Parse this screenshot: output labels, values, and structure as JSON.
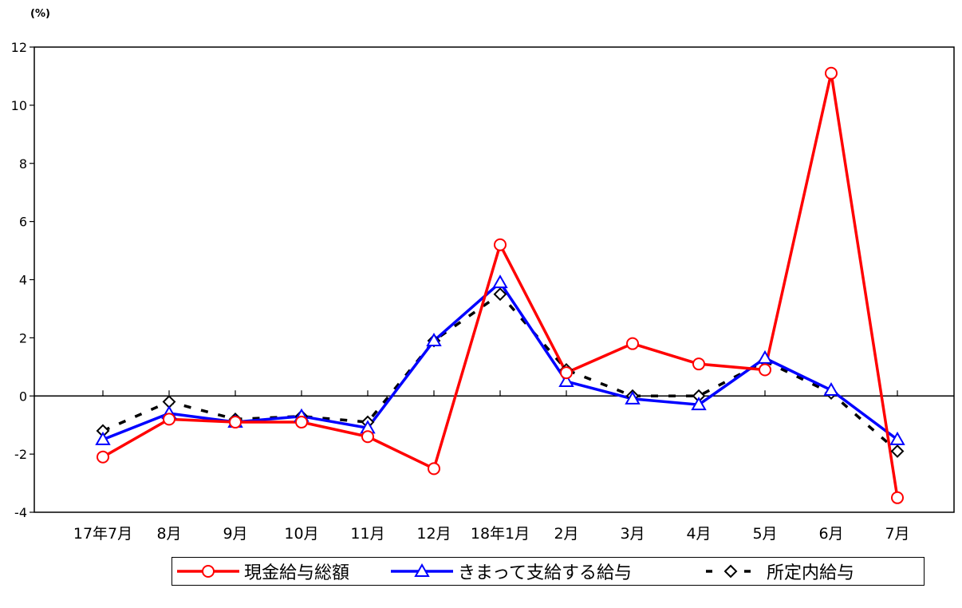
{
  "unit_label": "(%)",
  "chart_data": {
    "type": "line",
    "title": "",
    "xlabel": "",
    "ylabel": "",
    "categories": [
      "17年7月",
      "8月",
      "9月",
      "10月",
      "11月",
      "12月",
      "18年1月",
      "2月",
      "3月",
      "4月",
      "5月",
      "6月",
      "7月"
    ],
    "ylim": [
      -4,
      12
    ],
    "yticks": [
      -4,
      -2,
      0,
      2,
      4,
      6,
      8,
      10,
      12
    ],
    "grid": false,
    "legend_position": "bottom",
    "series": [
      {
        "name": "現金給与総額",
        "color": "#ff0000",
        "marker": "circle",
        "dash": "solid",
        "values": [
          -2.1,
          -0.8,
          -0.9,
          -0.9,
          -1.4,
          -2.5,
          5.2,
          0.8,
          1.8,
          1.1,
          0.9,
          11.1,
          -3.5
        ]
      },
      {
        "name": "きまって支給する給与",
        "color": "#0000ff",
        "marker": "triangle",
        "dash": "solid",
        "values": [
          -1.5,
          -0.6,
          -0.9,
          -0.7,
          -1.1,
          1.9,
          3.9,
          0.5,
          -0.1,
          -0.3,
          1.3,
          0.2,
          -1.5
        ]
      },
      {
        "name": "所定内給与",
        "color": "#000000",
        "marker": "diamond",
        "dash": "dashed",
        "values": [
          -1.2,
          -0.2,
          -0.8,
          -0.7,
          -0.9,
          1.9,
          3.5,
          0.9,
          0.0,
          0.0,
          1.2,
          0.1,
          -1.9
        ]
      }
    ]
  }
}
